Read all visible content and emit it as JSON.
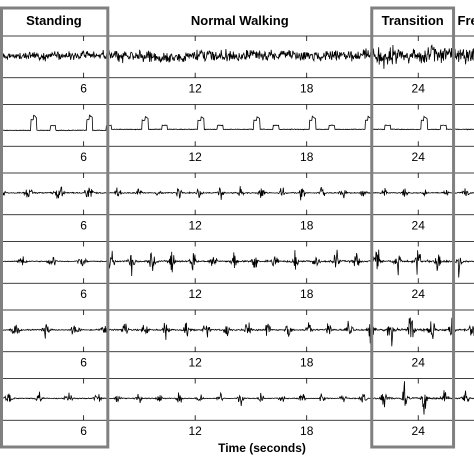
{
  "chart_data": {
    "type": "line",
    "description_free": true,
    "xlabel": "Time (seconds)",
    "xlim": [
      1.5,
      27
    ],
    "x_ticks": [
      6,
      12,
      18,
      24
    ],
    "phases": [
      {
        "label": "Standing",
        "start": 1.5,
        "end": 7.3,
        "boxed": true
      },
      {
        "label": "Normal Walking",
        "start": 7.3,
        "end": 21.5,
        "boxed": false
      },
      {
        "label": "Transition",
        "start": 21.5,
        "end": 25.9,
        "boxed": true
      },
      {
        "label": "Fre",
        "start": 25.9,
        "end": 27,
        "boxed": false
      }
    ],
    "series": [
      {
        "kind": "noisy-drift",
        "amp_by_phase": [
          0.35,
          0.55,
          0.75,
          0.75
        ]
      },
      {
        "kind": "step-pattern",
        "amp_by_phase": [
          0.6,
          0.5,
          0.5,
          0.5
        ]
      },
      {
        "kind": "bursts",
        "amp_by_phase": [
          0.45,
          0.35,
          0.25,
          0.4
        ]
      },
      {
        "kind": "bursts",
        "amp_by_phase": [
          0.35,
          0.6,
          0.75,
          0.6
        ]
      },
      {
        "kind": "bursts",
        "amp_by_phase": [
          0.35,
          0.5,
          0.85,
          0.6
        ]
      },
      {
        "kind": "bursts",
        "amp_by_phase": [
          0.3,
          0.3,
          0.7,
          0.55
        ]
      }
    ],
    "grid": true,
    "legend": "none"
  }
}
